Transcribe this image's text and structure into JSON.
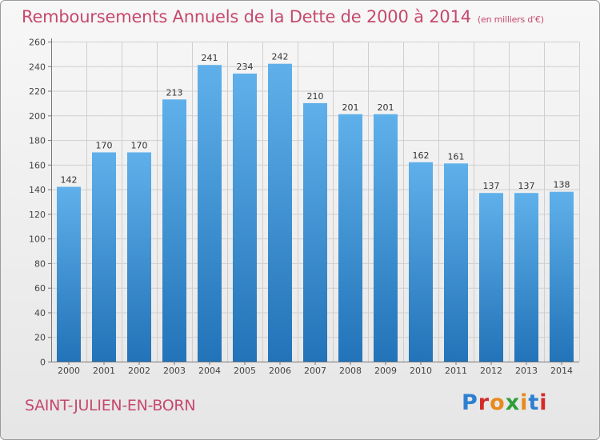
{
  "header": {
    "title": "Remboursements Annuels de la Dette de 2000 à 2014",
    "subtitle": "(en milliers d'€)"
  },
  "footer": {
    "town": "SAINT-JULIEN-EN-BORN",
    "brand": "Proxiti",
    "brand_colors": [
      "#2e7fd0",
      "#d42a2a",
      "#e88a1c",
      "#2f9e3a",
      "#e88a1c",
      "#2e7fd0",
      "#d42a2a"
    ]
  },
  "colors": {
    "bar_top": "#5fb0ea",
    "bar_bottom": "#2273b8",
    "grid": "#cfcfcf",
    "title": "#c6496e"
  },
  "chart_data": {
    "type": "bar",
    "categories": [
      "2000",
      "2001",
      "2002",
      "2003",
      "2004",
      "2005",
      "2006",
      "2007",
      "2008",
      "2009",
      "2010",
      "2011",
      "2012",
      "2013",
      "2014"
    ],
    "values": [
      142,
      170,
      170,
      213,
      241,
      234,
      242,
      210,
      201,
      201,
      162,
      161,
      137,
      137,
      138
    ],
    "ylim": [
      0,
      260
    ],
    "yticks": [
      0,
      20,
      40,
      60,
      80,
      100,
      120,
      140,
      160,
      180,
      200,
      220,
      240,
      260
    ],
    "grid": true,
    "data_labels": true
  }
}
